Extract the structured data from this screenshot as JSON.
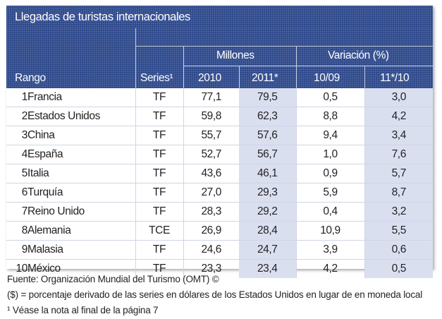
{
  "title": "Llegadas de turistas internacionales",
  "header": {
    "rank": "Rango",
    "series": "Series¹",
    "millions": "Millones",
    "variation": "Variación (%)",
    "y2010": "2010",
    "y2011": "2011*",
    "v1009": "10/09",
    "v1110": "11*/10"
  },
  "rows": [
    {
      "rank": "1",
      "country": "Francia",
      "series": "TF",
      "y2010": "77,1",
      "y2011": "79,5",
      "v1009": "0,5",
      "v1110": "3,0"
    },
    {
      "rank": "2",
      "country": "Estados Unidos",
      "series": "TF",
      "y2010": "59,8",
      "y2011": "62,3",
      "v1009": "8,8",
      "v1110": "4,2"
    },
    {
      "rank": "3",
      "country": "China",
      "series": "TF",
      "y2010": "55,7",
      "y2011": "57,6",
      "v1009": "9,4",
      "v1110": "3,4"
    },
    {
      "rank": "4",
      "country": "España",
      "series": "TF",
      "y2010": "52,7",
      "y2011": "56,7",
      "v1009": "1,0",
      "v1110": "7,6"
    },
    {
      "rank": "5",
      "country": "Italia",
      "series": "TF",
      "y2010": "43,6",
      "y2011": "46,1",
      "v1009": "0,9",
      "v1110": "5,7"
    },
    {
      "rank": "6",
      "country": "Turquía",
      "series": "TF",
      "y2010": "27,0",
      "y2011": "29,3",
      "v1009": "5,9",
      "v1110": "8,7"
    },
    {
      "rank": "7",
      "country": "Reino Unido",
      "series": "TF",
      "y2010": "28,3",
      "y2011": "29,2",
      "v1009": "0,4",
      "v1110": "3,2"
    },
    {
      "rank": "8",
      "country": "Alemania",
      "series": "TCE",
      "y2010": "26,9",
      "y2011": "28,4",
      "v1009": "10,9",
      "v1110": "5,5"
    },
    {
      "rank": "9",
      "country": "Malasia",
      "series": "TF",
      "y2010": "24,6",
      "y2011": "24,7",
      "v1009": "3,9",
      "v1110": "0,6"
    },
    {
      "rank": "10",
      "country": "México",
      "series": "TF",
      "y2010": "23,3",
      "y2011": "23,4",
      "v1009": "4,2",
      "v1110": "0,5"
    }
  ],
  "footer": {
    "source": "Fuente: Organización Mundial del Turismo (OMT) ©",
    "note1": "($) = porcentaje derivado de las series en dólares de los Estados Unidos en lugar de en moneda local",
    "note2": "¹ Véase la nota al final de la página 7"
  }
}
